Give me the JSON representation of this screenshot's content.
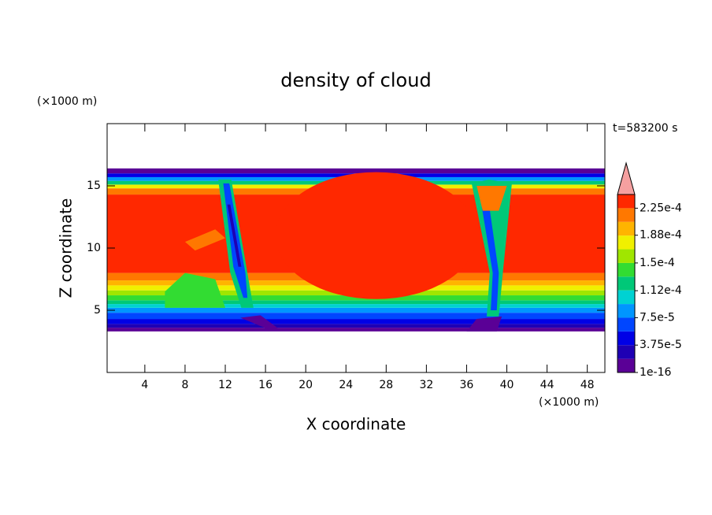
{
  "chart_data": {
    "type": "contour",
    "title": "density of cloud",
    "xlabel": "X coordinate",
    "ylabel": "Z coordinate",
    "xunit": "(×1000 m)",
    "yunit": "(×1000 m)",
    "annotation": "t=583200 s",
    "xlim": [
      0.25,
      49.75
    ],
    "ylim": [
      0,
      20
    ],
    "xticks": [
      4,
      8,
      12,
      16,
      20,
      24,
      28,
      32,
      36,
      40,
      44,
      48
    ],
    "yticks": [
      5,
      10,
      15
    ],
    "clim": [
      1e-16,
      0.00024375
    ],
    "cticks": [
      {
        "value": 1e-16,
        "label": "1e-16"
      },
      {
        "value": 3.75e-05,
        "label": "3.75e-5"
      },
      {
        "value": 7.5e-05,
        "label": "7.5e-5"
      },
      {
        "value": 0.000112,
        "label": "1.12e-4"
      },
      {
        "value": 0.00015,
        "label": "1.5e-4"
      },
      {
        "value": 0.000188,
        "label": "1.88e-4"
      },
      {
        "value": 0.000225,
        "label": "2.25e-4"
      }
    ],
    "colors": [
      "#5a0096",
      "#1e00b4",
      "#0000e6",
      "#0046ff",
      "#0096ff",
      "#00d2d2",
      "#00c878",
      "#32dc32",
      "#a0e600",
      "#f0f000",
      "#ffb400",
      "#ff7800",
      "#ff2800"
    ],
    "extend_color": "#f5a0a0"
  }
}
